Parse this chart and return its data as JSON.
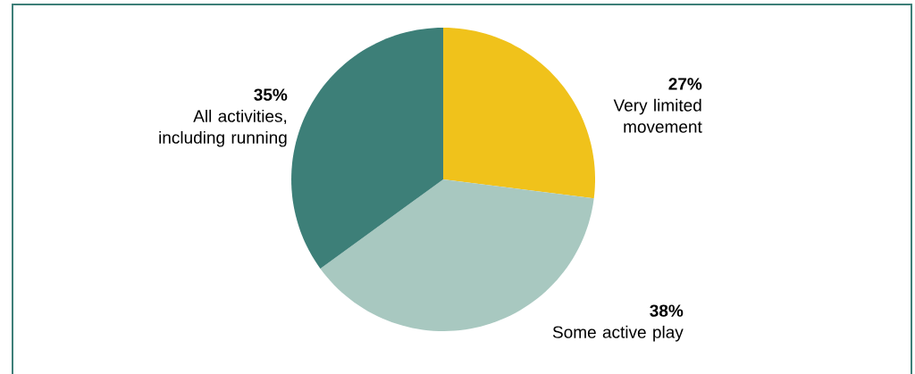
{
  "chart_data": {
    "type": "pie",
    "categories": [
      "Very limited movement",
      "Some active play",
      "All activities, including running"
    ],
    "values": [
      27,
      38,
      35
    ],
    "colors": [
      "#f0c21b",
      "#a8c8c0",
      "#3d7f78"
    ],
    "value_labels": [
      "27%",
      "38%",
      "35%"
    ]
  }
}
